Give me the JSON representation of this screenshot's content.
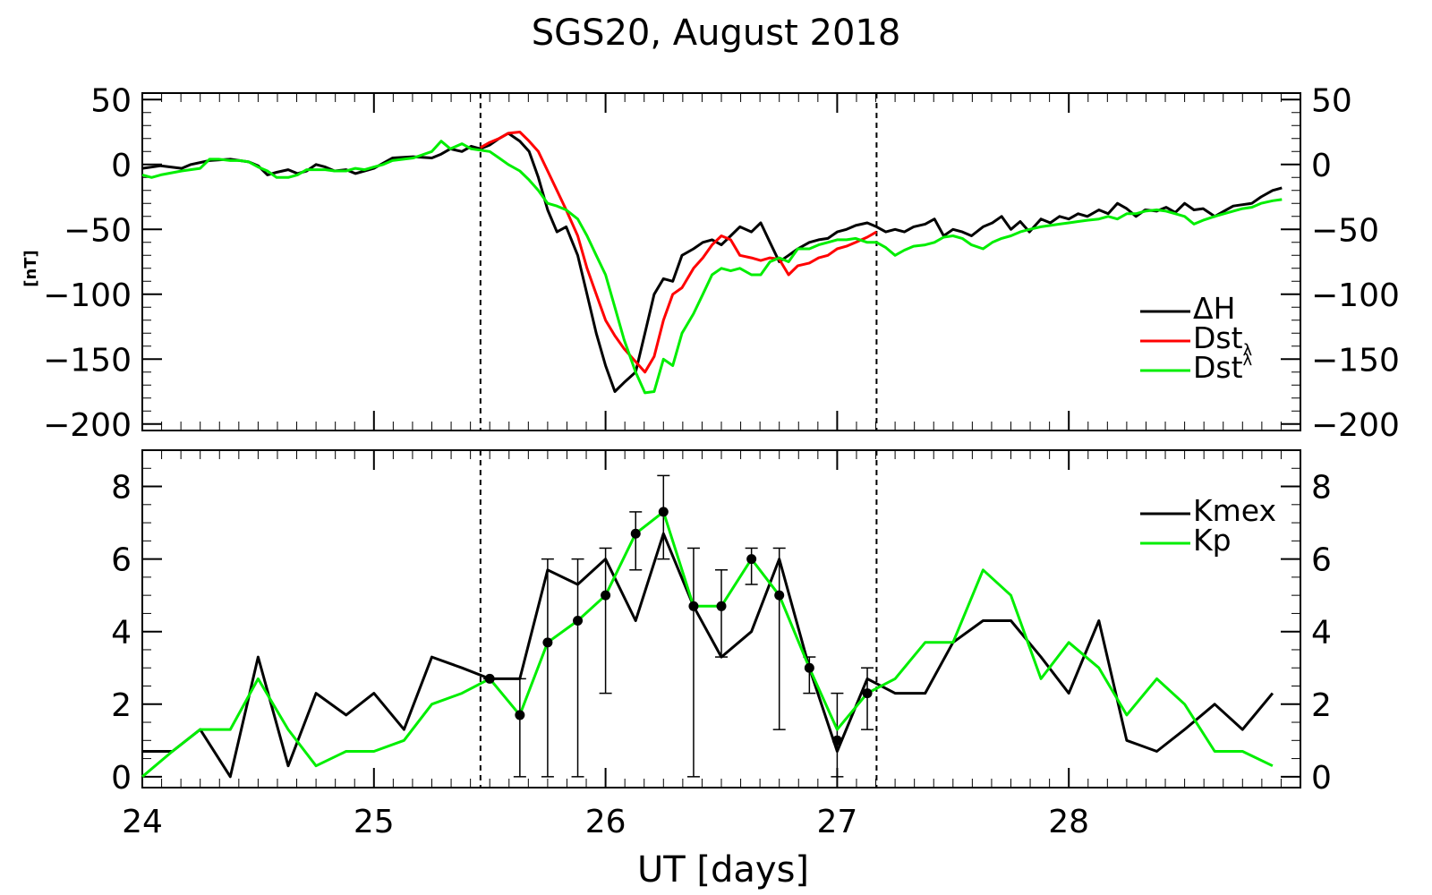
{
  "title": "SGS20, August 2018",
  "xlabel": "UT [days]",
  "colors": {
    "black": "#000000",
    "red": "#ff0000",
    "green": "#00ee00"
  },
  "chart_data": [
    {
      "type": "line",
      "panel": "top",
      "title": "SGS20, August 2018",
      "ylabel": "[nT]",
      "xlim": [
        24.0,
        29.0
      ],
      "ylim": [
        -205,
        55
      ],
      "yticks": [
        50,
        0,
        -50,
        -100,
        -150,
        -200
      ],
      "ytick_labels": [
        "50",
        "0",
        "−50",
        "−100",
        "−150",
        "−200"
      ],
      "vlines": [
        25.46,
        27.17
      ],
      "legend": {
        "position": "right",
        "entries": [
          "ΔH",
          "Dstλ",
          "Dstλ"
        ]
      },
      "series": [
        {
          "name": "ΔH",
          "color": "#000000",
          "x": [
            24.0,
            24.08,
            24.17,
            24.21,
            24.29,
            24.38,
            24.46,
            24.5,
            24.54,
            24.58,
            24.63,
            24.67,
            24.71,
            24.75,
            24.79,
            24.83,
            24.88,
            24.92,
            24.96,
            25.0,
            25.08,
            25.17,
            25.25,
            25.29,
            25.33,
            25.38,
            25.42,
            25.46,
            25.5,
            25.54,
            25.58,
            25.63,
            25.67,
            25.71,
            25.75,
            25.79,
            25.83,
            25.88,
            25.92,
            25.96,
            26.0,
            26.04,
            26.08,
            26.13,
            26.17,
            26.21,
            26.25,
            26.29,
            26.33,
            26.38,
            26.42,
            26.46,
            26.5,
            26.54,
            26.58,
            26.63,
            26.67,
            26.71,
            26.75,
            26.79,
            26.83,
            26.88,
            26.92,
            26.96,
            27.0,
            27.04,
            27.08,
            27.13,
            27.17,
            27.21,
            27.25,
            27.29,
            27.33,
            27.38,
            27.42,
            27.46,
            27.5,
            27.54,
            27.58,
            27.63,
            27.67,
            27.71,
            27.75,
            27.79,
            27.83,
            27.88,
            27.92,
            27.96,
            28.0,
            28.04,
            28.08,
            28.13,
            28.17,
            28.21,
            28.25,
            28.29,
            28.33,
            28.38,
            28.42,
            28.46,
            28.5,
            28.54,
            28.58,
            28.63,
            28.67,
            28.71,
            28.75,
            28.79,
            28.83,
            28.88,
            28.92
          ],
          "y": [
            -3,
            -1,
            -3,
            0,
            3,
            4,
            2,
            -1,
            -8,
            -6,
            -4,
            -7,
            -5,
            0,
            -2,
            -5,
            -4,
            -7,
            -5,
            -3,
            5,
            6,
            5,
            8,
            12,
            10,
            14,
            12,
            15,
            20,
            24,
            18,
            10,
            -10,
            -35,
            -52,
            -48,
            -70,
            -100,
            -130,
            -155,
            -175,
            -168,
            -160,
            -130,
            -100,
            -88,
            -90,
            -70,
            -65,
            -60,
            -58,
            -62,
            -55,
            -48,
            -52,
            -45,
            -60,
            -75,
            -70,
            -65,
            -60,
            -58,
            -57,
            -52,
            -50,
            -47,
            -45,
            -48,
            -52,
            -50,
            -52,
            -48,
            -46,
            -42,
            -55,
            -50,
            -52,
            -55,
            -48,
            -45,
            -40,
            -50,
            -44,
            -52,
            -42,
            -45,
            -40,
            -42,
            -38,
            -40,
            -35,
            -38,
            -30,
            -34,
            -40,
            -35,
            -36,
            -33,
            -37,
            -30,
            -35,
            -34,
            -40,
            -36,
            -32,
            -31,
            -30,
            -25,
            -20,
            -18
          ]
        },
        {
          "name": "Dstλ",
          "color": "#ff0000",
          "x": [
            25.46,
            25.5,
            25.54,
            25.58,
            25.63,
            25.67,
            25.71,
            25.75,
            25.79,
            25.83,
            25.88,
            25.92,
            25.96,
            26.0,
            26.04,
            26.08,
            26.13,
            26.17,
            26.21,
            26.25,
            26.29,
            26.33,
            26.38,
            26.42,
            26.46,
            26.5,
            26.54,
            26.58,
            26.63,
            26.67,
            26.71,
            26.75,
            26.79,
            26.83,
            26.88,
            26.92,
            26.96,
            27.0,
            27.04,
            27.08,
            27.13,
            27.17
          ],
          "y": [
            13,
            17,
            20,
            24,
            25,
            18,
            10,
            -5,
            -20,
            -35,
            -55,
            -80,
            -100,
            -120,
            -132,
            -142,
            -152,
            -160,
            -148,
            -120,
            -100,
            -95,
            -80,
            -72,
            -62,
            -55,
            -58,
            -70,
            -72,
            -74,
            -72,
            -73,
            -85,
            -78,
            -76,
            -72,
            -70,
            -65,
            -63,
            -60,
            -56,
            -52
          ]
        },
        {
          "name": "Dstλ",
          "color": "#00ee00",
          "x": [
            24.0,
            24.04,
            24.08,
            24.17,
            24.25,
            24.29,
            24.33,
            24.38,
            24.42,
            24.46,
            24.5,
            24.54,
            24.58,
            24.63,
            24.67,
            24.71,
            24.75,
            24.79,
            24.83,
            24.88,
            24.92,
            24.96,
            25.0,
            25.04,
            25.08,
            25.17,
            25.25,
            25.29,
            25.33,
            25.38,
            25.42,
            25.46,
            25.5,
            25.54,
            25.58,
            25.63,
            25.67,
            25.71,
            25.75,
            25.79,
            25.83,
            25.88,
            25.92,
            25.96,
            26.0,
            26.04,
            26.08,
            26.13,
            26.17,
            26.21,
            26.25,
            26.29,
            26.33,
            26.38,
            26.42,
            26.46,
            26.5,
            26.54,
            26.58,
            26.63,
            26.67,
            26.71,
            26.75,
            26.79,
            26.83,
            26.88,
            26.92,
            26.96,
            27.0,
            27.04,
            27.08,
            27.13,
            27.17,
            27.21,
            27.25,
            27.29,
            27.33,
            27.38,
            27.42,
            27.46,
            27.5,
            27.54,
            27.58,
            27.63,
            27.67,
            27.71,
            27.75,
            27.79,
            27.83,
            27.88,
            27.92,
            27.96,
            28.0,
            28.04,
            28.08,
            28.13,
            28.17,
            28.21,
            28.25,
            28.29,
            28.33,
            28.38,
            28.42,
            28.46,
            28.5,
            28.54,
            28.58,
            28.63,
            28.67,
            28.71,
            28.75,
            28.79,
            28.83,
            28.88,
            28.92
          ],
          "y": [
            -8,
            -10,
            -8,
            -5,
            -3,
            4,
            4,
            3,
            3,
            2,
            -2,
            -5,
            -10,
            -10,
            -8,
            -4,
            -4,
            -4,
            -5,
            -5,
            -3,
            -4,
            -2,
            0,
            3,
            5,
            10,
            18,
            12,
            16,
            12,
            11,
            10,
            5,
            0,
            -5,
            -12,
            -20,
            -30,
            -32,
            -35,
            -42,
            -55,
            -70,
            -85,
            -110,
            -135,
            -160,
            -176,
            -175,
            -150,
            -155,
            -130,
            -115,
            -100,
            -85,
            -80,
            -82,
            -80,
            -85,
            -85,
            -75,
            -72,
            -75,
            -65,
            -65,
            -62,
            -60,
            -58,
            -58,
            -57,
            -60,
            -60,
            -64,
            -70,
            -66,
            -63,
            -62,
            -60,
            -56,
            -55,
            -57,
            -62,
            -65,
            -60,
            -57,
            -55,
            -52,
            -50,
            -48,
            -47,
            -46,
            -45,
            -44,
            -43,
            -42,
            -40,
            -42,
            -38,
            -38,
            -36,
            -35,
            -36,
            -38,
            -40,
            -46,
            -43,
            -40,
            -38,
            -36,
            -34,
            -33,
            -30,
            -28,
            -27
          ]
        }
      ]
    },
    {
      "type": "line",
      "panel": "bottom",
      "xlabel": "UT [days]",
      "xlim": [
        24.0,
        29.0
      ],
      "ylim": [
        -0.3,
        9.0
      ],
      "yticks": [
        0,
        2,
        4,
        6,
        8
      ],
      "ytick_labels": [
        "0",
        "2",
        "4",
        "6",
        "8"
      ],
      "xticks": [
        24,
        25,
        26,
        27,
        28
      ],
      "xtick_labels": [
        "24",
        "25",
        "26",
        "27",
        "28"
      ],
      "vlines": [
        25.46,
        27.17
      ],
      "legend": {
        "position": "top-right",
        "entries": [
          "Kmex",
          "Kp"
        ]
      },
      "series": [
        {
          "name": "Kmex",
          "color": "#000000",
          "x": [
            24.0,
            24.13,
            24.25,
            24.38,
            24.5,
            24.63,
            24.75,
            24.88,
            25.0,
            25.13,
            25.25,
            25.38,
            25.5,
            25.63,
            25.75,
            25.88,
            26.0,
            26.13,
            26.25,
            26.38,
            26.5,
            26.63,
            26.75,
            26.88,
            27.0,
            27.13,
            27.25,
            27.38,
            27.5,
            27.63,
            27.75,
            27.88,
            28.0,
            28.13,
            28.25,
            28.38,
            28.5,
            28.63,
            28.75,
            28.88
          ],
          "y": [
            0.7,
            0.7,
            1.3,
            0.0,
            3.3,
            0.3,
            2.3,
            1.7,
            2.3,
            1.3,
            3.3,
            3.0,
            2.7,
            2.7,
            5.7,
            5.3,
            6.0,
            4.3,
            6.7,
            4.7,
            3.3,
            4.0,
            6.0,
            3.0,
            0.7,
            2.7,
            2.3,
            2.3,
            3.7,
            4.3,
            4.3,
            3.3,
            2.3,
            4.3,
            1.0,
            0.7,
            1.3,
            2.0,
            1.3,
            2.3
          ]
        },
        {
          "name": "Kp",
          "color": "#00ee00",
          "x": [
            24.0,
            24.13,
            24.25,
            24.38,
            24.5,
            24.63,
            24.75,
            24.88,
            25.0,
            25.13,
            25.25,
            25.38,
            25.5,
            25.63,
            25.75,
            25.88,
            26.0,
            26.13,
            26.25,
            26.38,
            26.5,
            26.63,
            26.75,
            26.88,
            27.0,
            27.13,
            27.25,
            27.38,
            27.5,
            27.63,
            27.75,
            27.88,
            28.0,
            28.13,
            28.25,
            28.38,
            28.5,
            28.63,
            28.75,
            28.88
          ],
          "y": [
            0.0,
            0.7,
            1.3,
            1.3,
            2.7,
            1.3,
            0.3,
            0.7,
            0.7,
            1.0,
            2.0,
            2.3,
            2.7,
            1.7,
            3.7,
            4.3,
            5.0,
            6.7,
            7.3,
            4.7,
            4.7,
            6.0,
            5.0,
            3.0,
            1.3,
            2.3,
            2.7,
            3.7,
            3.7,
            5.7,
            5.0,
            2.7,
            3.7,
            3.0,
            1.7,
            2.7,
            2.0,
            0.7,
            0.7,
            0.3
          ]
        }
      ],
      "errorbars": {
        "x": [
          25.5,
          25.63,
          25.75,
          25.88,
          26.0,
          26.13,
          26.25,
          26.38,
          26.5,
          26.63,
          26.75,
          26.88,
          27.0,
          27.13
        ],
        "y": [
          2.7,
          1.7,
          3.7,
          4.3,
          5.0,
          6.7,
          7.3,
          4.7,
          4.7,
          6.0,
          5.0,
          3.0,
          1.0,
          2.3
        ],
        "low": [
          2.7,
          0.0,
          0.0,
          0.0,
          2.3,
          5.7,
          6.0,
          0.0,
          3.3,
          5.3,
          1.3,
          2.3,
          0.0,
          1.3
        ],
        "high": [
          2.7,
          2.7,
          6.0,
          6.0,
          6.3,
          7.3,
          8.3,
          6.3,
          5.7,
          6.3,
          6.3,
          3.3,
          2.3,
          3.0
        ]
      }
    }
  ]
}
